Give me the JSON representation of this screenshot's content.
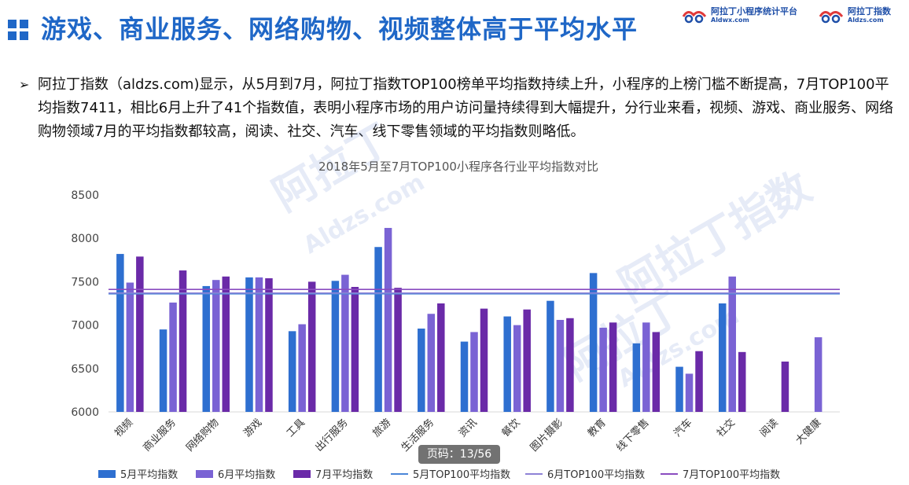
{
  "header": {
    "title": "游戏、商业服务、网络购物、视频整体高于平均水平",
    "brand1": {
      "cn": "阿拉丁小程序统计平台",
      "en": "Aldwx.com"
    },
    "brand2": {
      "cn": "阿拉丁指数",
      "en": "Aldzs.com"
    }
  },
  "bullet_text": "阿拉丁指数（aldzs.com)显示，从5月到7月，阿拉丁指数TOP100榜单平均指数持续上升，小程序的上榜门槛不断提高，7月TOP100平均指数7411，相比6月上升了41个指数值，表明小程序市场的用户访问量持续得到大幅提升，分行业来看，视频、游戏、商业服务、网络购物领域7月的平均指数都较高，阅读、社交、汽车、线下零售领域的平均指数则略低。",
  "watermarks": [
    "阿拉丁",
    "Aldzs.com",
    "阿拉丁指数",
    "阿拉丁",
    "Aldzs.com"
  ],
  "page_indicator": "页码：13/56",
  "colors": {
    "may": "#2e6fd0",
    "june": "#7a63d4",
    "july": "#6a2aa8",
    "may_avg": "#4a86d8",
    "june_avg": "#8e82d6",
    "july_avg": "#8a4cc0",
    "accent": "#1f67c7"
  },
  "chart_data": {
    "type": "bar",
    "title": "2018年5月至7月TOP100小程序各行业平均指数对比",
    "xlabel": "",
    "ylabel": "",
    "ylim": [
      6000,
      8500
    ],
    "yticks": [
      6000,
      6500,
      7000,
      7500,
      8000,
      8500
    ],
    "grid": false,
    "legend_position": "bottom",
    "categories": [
      "视频",
      "商业服务",
      "网络购物",
      "游戏",
      "工具",
      "出行服务",
      "旅游",
      "生活服务",
      "资讯",
      "餐饮",
      "图片摄影",
      "教育",
      "线下零售",
      "汽车",
      "社交",
      "阅读",
      "大健康"
    ],
    "series": [
      {
        "name": "5月平均指数",
        "values": [
          7820,
          6950,
          7450,
          7550,
          6930,
          7510,
          7900,
          6960,
          6810,
          7100,
          7280,
          7600,
          6790,
          6520,
          7250,
          null,
          null
        ]
      },
      {
        "name": "6月平均指数",
        "values": [
          7490,
          7260,
          7520,
          7550,
          7010,
          7580,
          8120,
          7130,
          6920,
          7000,
          7060,
          6970,
          7030,
          6440,
          7560,
          null,
          6860
        ]
      },
      {
        "name": "7月平均指数",
        "values": [
          7790,
          7630,
          7560,
          7540,
          7500,
          7440,
          7430,
          7250,
          7190,
          7180,
          7080,
          7030,
          6920,
          6700,
          6690,
          6580,
          null
        ]
      }
    ],
    "reference_lines": [
      {
        "name": "5月TOP100平均指数",
        "value": 7360
      },
      {
        "name": "6月TOP100平均指数",
        "value": 7370
      },
      {
        "name": "7月TOP100平均指数",
        "value": 7411
      }
    ]
  }
}
